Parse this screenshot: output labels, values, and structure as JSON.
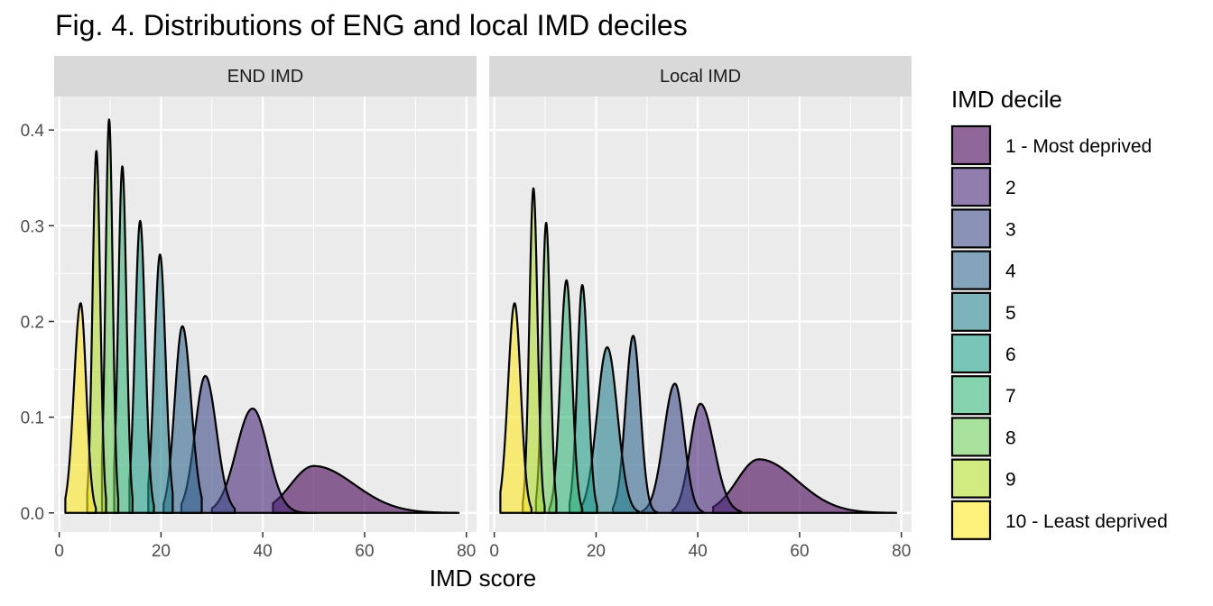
{
  "chart_data": {
    "type": "area",
    "title": "Fig. 4. Distributions of ENG and local IMD deciles",
    "xlabel": "IMD score",
    "ylabel": "",
    "xlim": [
      -1,
      82
    ],
    "ylim": [
      -0.02,
      0.435
    ],
    "x_ticks": [
      0,
      20,
      40,
      60,
      80
    ],
    "y_ticks": [
      0.0,
      0.1,
      0.2,
      0.3,
      0.4
    ],
    "y_tick_labels": [
      "0.0",
      "0.1",
      "0.2",
      "0.3",
      "0.4"
    ],
    "grid": true,
    "legend_position": "right",
    "legend_title": "IMD decile",
    "categories": [
      "1 - Most deprived",
      "2",
      "3",
      "4",
      "5",
      "6",
      "7",
      "8",
      "9",
      "10 - Least deprived"
    ],
    "colors": [
      "#440154",
      "#482878",
      "#3E4A89",
      "#31688E",
      "#26828E",
      "#1F9E89",
      "#35B779",
      "#6DCD59",
      "#B4DE2C",
      "#FDE725"
    ],
    "panels": [
      {
        "label": "END IMD",
        "series": [
          {
            "decile": "1 - Most deprived",
            "x_min": 42,
            "x_max": 78.5,
            "peak_x": 50,
            "peak_y": 0.049,
            "sd_left": 4.5,
            "sd_right": 8
          },
          {
            "decile": "2",
            "x_min": 30,
            "x_max": 50.5,
            "peak_x": 38,
            "peak_y": 0.109,
            "sd_left": 3.2,
            "sd_right": 3.0
          },
          {
            "decile": "3",
            "x_min": 24,
            "x_max": 34.5,
            "peak_x": 28.7,
            "peak_y": 0.143,
            "sd_left": 2.0,
            "sd_right": 2.2
          },
          {
            "decile": "4",
            "x_min": 20.5,
            "x_max": 28,
            "peak_x": 24.2,
            "peak_y": 0.195,
            "sd_left": 1.5,
            "sd_right": 1.7
          },
          {
            "decile": "5",
            "x_min": 17.5,
            "x_max": 22.3,
            "peak_x": 19.8,
            "peak_y": 0.27,
            "sd_left": 1.1,
            "sd_right": 1.1
          },
          {
            "decile": "6",
            "x_min": 13.8,
            "x_max": 18.6,
            "peak_x": 15.9,
            "peak_y": 0.305,
            "sd_left": 1.0,
            "sd_right": 1.0
          },
          {
            "decile": "7",
            "x_min": 10.8,
            "x_max": 14.4,
            "peak_x": 12.4,
            "peak_y": 0.362,
            "sd_left": 0.8,
            "sd_right": 0.8
          },
          {
            "decile": "8",
            "x_min": 8.4,
            "x_max": 11.6,
            "peak_x": 9.8,
            "peak_y": 0.411,
            "sd_left": 0.7,
            "sd_right": 0.7
          },
          {
            "decile": "9",
            "x_min": 5.5,
            "x_max": 9.2,
            "peak_x": 7.3,
            "peak_y": 0.378,
            "sd_left": 0.75,
            "sd_right": 0.75
          },
          {
            "decile": "10 - Least deprived",
            "x_min": 1.2,
            "x_max": 7.2,
            "peak_x": 4.2,
            "peak_y": 0.219,
            "sd_left": 1.3,
            "sd_right": 1.1
          }
        ]
      },
      {
        "label": "Local IMD",
        "series": [
          {
            "decile": "1 - Most deprived",
            "x_min": 43,
            "x_max": 79,
            "peak_x": 52,
            "peak_y": 0.056,
            "sd_left": 4.3,
            "sd_right": 7.5
          },
          {
            "decile": "2",
            "x_min": 35,
            "x_max": 48.5,
            "peak_x": 40.5,
            "peak_y": 0.114,
            "sd_left": 2.0,
            "sd_right": 2.7
          },
          {
            "decile": "3",
            "x_min": 29,
            "x_max": 41,
            "peak_x": 35.5,
            "peak_y": 0.135,
            "sd_left": 2.2,
            "sd_right": 1.8
          },
          {
            "decile": "4",
            "x_min": 23.3,
            "x_max": 32,
            "peak_x": 27.3,
            "peak_y": 0.185,
            "sd_left": 1.5,
            "sd_right": 1.4
          },
          {
            "decile": "5",
            "x_min": 17,
            "x_max": 28.5,
            "peak_x": 22.2,
            "peak_y": 0.173,
            "sd_left": 2.0,
            "sd_right": 2.0
          },
          {
            "decile": "6",
            "x_min": 14.8,
            "x_max": 20.2,
            "peak_x": 17.3,
            "peak_y": 0.238,
            "sd_left": 1.0,
            "sd_right": 1.1
          },
          {
            "decile": "7",
            "x_min": 10.8,
            "x_max": 17.3,
            "peak_x": 14.2,
            "peak_y": 0.243,
            "sd_left": 1.2,
            "sd_right": 1.1
          },
          {
            "decile": "8",
            "x_min": 8.2,
            "x_max": 12.2,
            "peak_x": 10.2,
            "peak_y": 0.303,
            "sd_left": 0.8,
            "sd_right": 0.8
          },
          {
            "decile": "9",
            "x_min": 5.6,
            "x_max": 9.9,
            "peak_x": 7.7,
            "peak_y": 0.339,
            "sd_left": 0.8,
            "sd_right": 0.8
          },
          {
            "decile": "10 - Least deprived",
            "x_min": 1.2,
            "x_max": 7.3,
            "peak_x": 4.0,
            "peak_y": 0.219,
            "sd_left": 1.3,
            "sd_right": 1.2
          }
        ]
      }
    ]
  }
}
